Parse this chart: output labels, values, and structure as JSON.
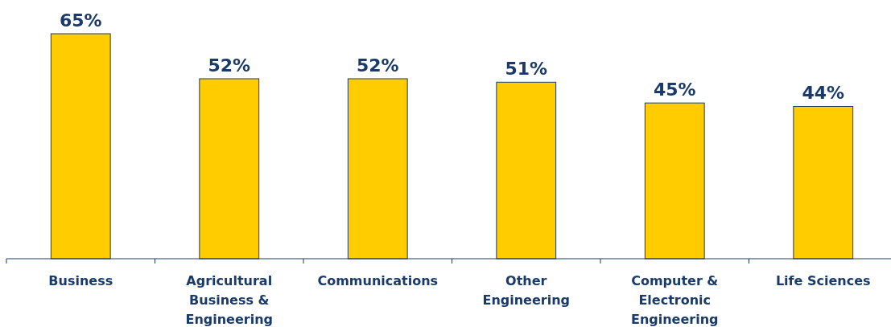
{
  "chart_data": {
    "type": "bar",
    "categories": [
      "Business",
      "Agricultural Business & Engineering",
      "Communications",
      "Other Engineering",
      "Computer & Electronic Engineering",
      "Life Sciences"
    ],
    "values": [
      65,
      52,
      52,
      51,
      45,
      44
    ],
    "value_labels": [
      "65%",
      "52%",
      "52%",
      "51%",
      "45%",
      "44%"
    ],
    "color": "#ffcc00"
  }
}
